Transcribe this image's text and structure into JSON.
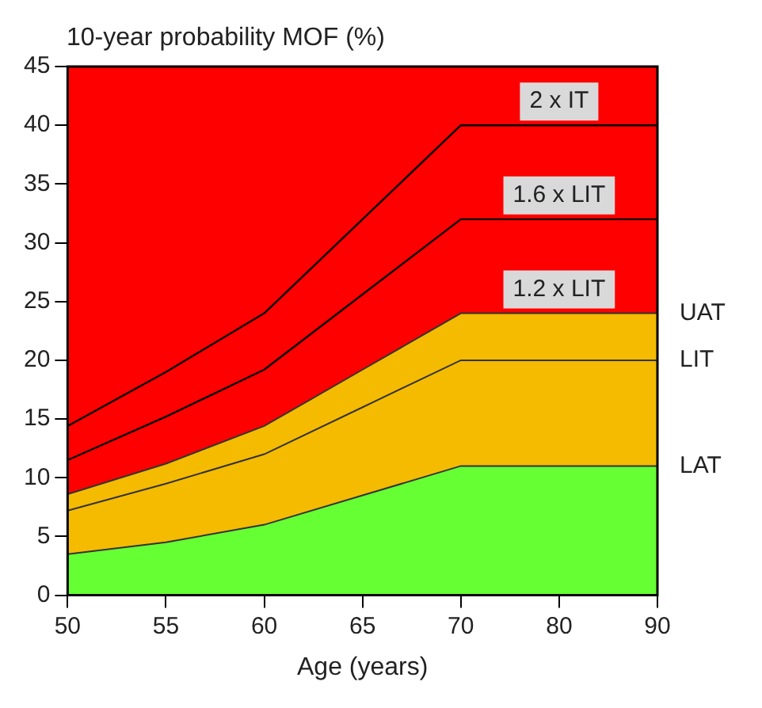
{
  "chart_data": {
    "type": "area",
    "ylabel": "10-year probability MOF (%)",
    "xlabel": "Age (years)",
    "categories": [
      "50",
      "55",
      "60",
      "65",
      "70",
      "80",
      "90"
    ],
    "ylim": [
      0,
      45
    ],
    "yticks": [
      0,
      5,
      10,
      15,
      20,
      25,
      30,
      35,
      40,
      45
    ],
    "legend": false,
    "series": [
      {
        "name": "LAT",
        "color": "#66ff33",
        "values": [
          3.5,
          4.5,
          6,
          8.5,
          11,
          11,
          11
        ]
      },
      {
        "name": "LIT",
        "color": "#f5bb00",
        "values": [
          7.2,
          9.5,
          12,
          16,
          20,
          20,
          20
        ]
      },
      {
        "name": "UAT",
        "color": "#f5bb00",
        "values": [
          8.6,
          11.2,
          14.4,
          19.2,
          24,
          24,
          24
        ]
      },
      {
        "color": "#ff0000",
        "values": [
          45,
          45,
          45,
          45,
          45,
          45,
          45
        ]
      },
      {
        "name": "1.6 x LIT",
        "type": "line",
        "color": "#000000",
        "values": [
          11.5,
          15.2,
          19.2,
          25.6,
          32,
          32,
          32
        ]
      },
      {
        "name": "2 x IT",
        "type": "line",
        "color": "#000000",
        "values": [
          14.4,
          19,
          24,
          32,
          40,
          40,
          40
        ]
      }
    ],
    "annotations": [
      {
        "text": "1.2 x LIT",
        "x": "80",
        "y": 24
      }
    ]
  }
}
